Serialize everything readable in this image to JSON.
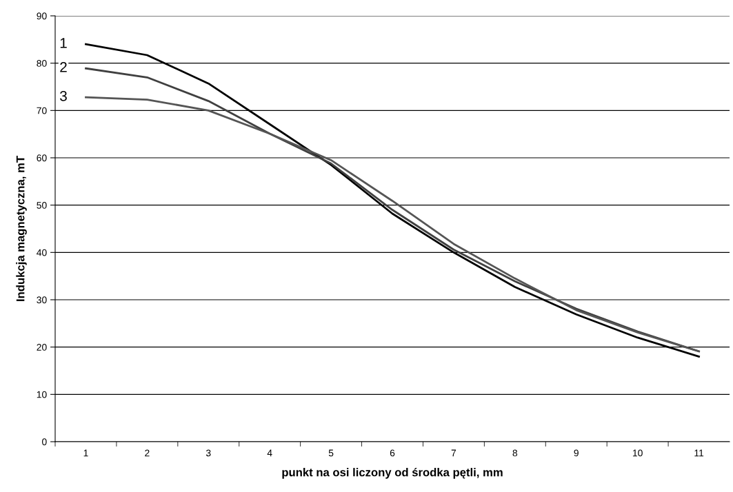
{
  "chart_data": {
    "type": "line",
    "xlabel": "punkt na osi liczony od środka pętli, mm",
    "ylabel": "Indukcja magnetyczna, mT",
    "categories": [
      "1",
      "2",
      "3",
      "4",
      "5",
      "6",
      "7",
      "8",
      "9",
      "10",
      "11"
    ],
    "series": [
      {
        "name": "1",
        "color": "#000000",
        "values": [
          84.0,
          81.7,
          75.7,
          67.1,
          58.5,
          48.2,
          40.0,
          32.7,
          26.9,
          22.0,
          18.0
        ]
      },
      {
        "name": "2",
        "color": "#404040",
        "values": [
          78.9,
          77.0,
          72.0,
          65.1,
          58.8,
          49.0,
          40.6,
          33.9,
          28.1,
          23.3,
          19.1
        ]
      },
      {
        "name": "3",
        "color": "#555555",
        "values": [
          72.8,
          72.3,
          70.0,
          65.1,
          59.5,
          50.9,
          41.8,
          34.5,
          27.8,
          23.1,
          19.1
        ]
      }
    ],
    "ylim": [
      0,
      90
    ],
    "yticks": [
      0,
      10,
      20,
      30,
      40,
      50,
      60,
      70,
      80,
      90
    ],
    "grid": "y",
    "legend": false
  }
}
